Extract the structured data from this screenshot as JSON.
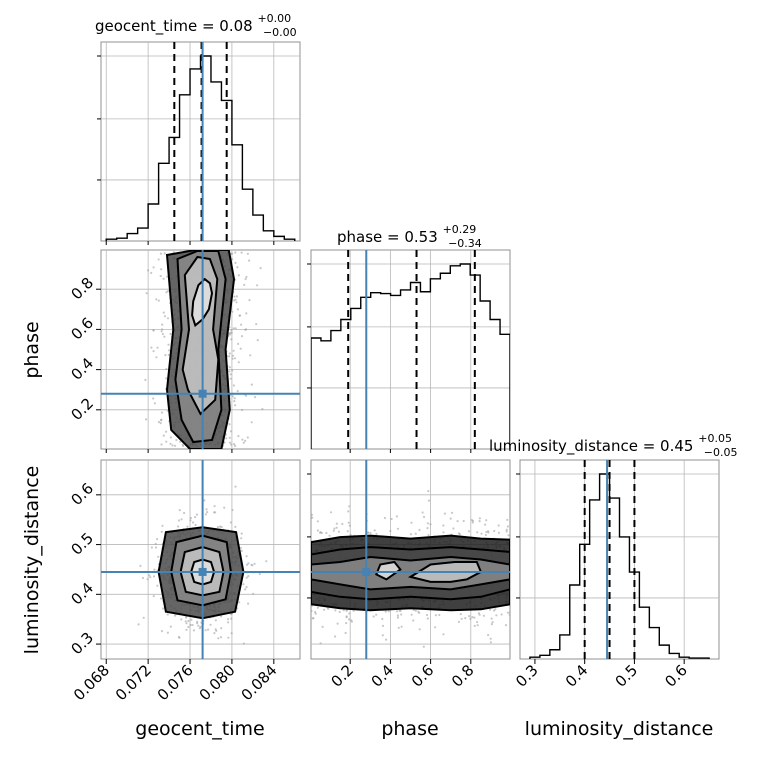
{
  "chart_data": {
    "type": "corner",
    "parameters": [
      "geocent_time",
      "phase",
      "luminosity_distance"
    ],
    "truth_values": {
      "geocent_time": 0.0772,
      "phase": 0.28,
      "luminosity_distance": 0.445
    },
    "ranges": {
      "geocent_time": [
        0.0675,
        0.0865
      ],
      "phase": [
        0.005,
        0.995
      ],
      "luminosity_distance": [
        0.27,
        0.67
      ]
    },
    "titles": [
      {
        "param": "geocent_time",
        "label": "geocent_time = 0.08",
        "sup": "+0.00",
        "sub": "−0.00"
      },
      {
        "param": "phase",
        "label": "phase = 0.53",
        "sup": "+0.29",
        "sub": "−0.34"
      },
      {
        "param": "luminosity_distance",
        "label": "luminosity_distance = 0.45",
        "sup": "+0.05",
        "sub": "−0.05"
      }
    ],
    "ticks": {
      "geocent_time": [
        "0.068",
        "0.072",
        "0.076",
        "0.080",
        "0.084"
      ],
      "phase": [
        "0.2",
        "0.4",
        "0.6",
        "0.8"
      ],
      "luminosity_distance": [
        "0.3",
        "0.4",
        "0.5",
        "0.6"
      ]
    },
    "quantiles": {
      "geocent_time": [
        0.0745,
        0.0771,
        0.0795
      ],
      "phase": [
        0.19,
        0.53,
        0.82
      ],
      "luminosity_distance": [
        0.4,
        0.45,
        0.5
      ]
    },
    "histograms": {
      "geocent_time": {
        "edges": [
          0.068,
          0.069,
          0.07,
          0.071,
          0.072,
          0.073,
          0.074,
          0.075,
          0.076,
          0.077,
          0.078,
          0.079,
          0.08,
          0.081,
          0.082,
          0.083,
          0.084,
          0.085,
          0.086
        ],
        "counts": [
          0.01,
          0.015,
          0.04,
          0.07,
          0.2,
          0.42,
          0.56,
          0.79,
          0.93,
          1.0,
          0.86,
          0.76,
          0.52,
          0.28,
          0.14,
          0.055,
          0.025,
          0.01
        ]
      },
      "phase": {
        "edges": [
          0.005,
          0.0545,
          0.104,
          0.1535,
          0.203,
          0.2525,
          0.302,
          0.3515,
          0.401,
          0.4505,
          0.5,
          0.5495,
          0.599,
          0.6485,
          0.698,
          0.7475,
          0.797,
          0.8465,
          0.896,
          0.9455,
          0.995
        ],
        "counts": [
          0.6,
          0.585,
          0.64,
          0.7,
          0.76,
          0.82,
          0.845,
          0.84,
          0.83,
          0.86,
          0.9,
          0.85,
          0.92,
          0.95,
          0.99,
          1.0,
          0.94,
          0.8,
          0.7,
          0.62
        ]
      },
      "luminosity_distance": {
        "edges": [
          0.29,
          0.31,
          0.33,
          0.35,
          0.37,
          0.39,
          0.41,
          0.43,
          0.45,
          0.47,
          0.49,
          0.51,
          0.53,
          0.55,
          0.57,
          0.59,
          0.61,
          0.63,
          0.65
        ],
        "counts": [
          0.01,
          0.02,
          0.05,
          0.13,
          0.4,
          0.62,
          0.86,
          1.0,
          0.87,
          0.66,
          0.47,
          0.28,
          0.17,
          0.075,
          0.03,
          0.01,
          0.005,
          0.005
        ]
      }
    },
    "contours": {
      "phase_vs_geocent_time": [
        {
          "x": [
            0.0765,
            0.0772,
            0.0778,
            0.0781,
            0.0779,
            0.0774,
            0.0768,
            0.0763,
            0.0762,
            0.0765
          ],
          "y": [
            0.62,
            0.65,
            0.7,
            0.78,
            0.83,
            0.85,
            0.82,
            0.74,
            0.67,
            0.62
          ]
        },
        {
          "x": [
            0.0758,
            0.077,
            0.0784,
            0.0787,
            0.0782,
            0.0786,
            0.0779,
            0.0767,
            0.0755,
            0.0759,
            0.0753,
            0.0758
          ],
          "y": [
            0.3,
            0.18,
            0.25,
            0.45,
            0.6,
            0.85,
            0.95,
            0.96,
            0.87,
            0.6,
            0.4,
            0.3
          ]
        },
        {
          "x": [
            0.0752,
            0.0763,
            0.0781,
            0.079,
            0.0787,
            0.0794,
            0.0787,
            0.0767,
            0.0748,
            0.0752,
            0.0746,
            0.0752
          ],
          "y": [
            0.15,
            0.04,
            0.05,
            0.2,
            0.5,
            0.85,
            0.99,
            0.99,
            0.95,
            0.6,
            0.35,
            0.15
          ]
        },
        {
          "x": [
            0.0742,
            0.076,
            0.079,
            0.0798,
            0.0794,
            0.0802,
            0.0797,
            0.0765,
            0.0738,
            0.0744,
            0.0738,
            0.0742
          ],
          "y": [
            0.1,
            0.005,
            0.005,
            0.2,
            0.5,
            0.85,
            0.995,
            0.995,
            0.97,
            0.6,
            0.3,
            0.1
          ]
        }
      ],
      "luminosity_distance_vs_geocent_time": [
        {
          "x": [
            0.0764,
            0.0772,
            0.078,
            0.0783,
            0.078,
            0.0772,
            0.0764,
            0.0761,
            0.0764
          ],
          "y": [
            0.425,
            0.42,
            0.425,
            0.445,
            0.465,
            0.47,
            0.465,
            0.445,
            0.425
          ]
        },
        {
          "x": [
            0.0756,
            0.0772,
            0.0788,
            0.0792,
            0.0788,
            0.0772,
            0.0755,
            0.0751,
            0.0756
          ],
          "y": [
            0.405,
            0.398,
            0.405,
            0.445,
            0.485,
            0.495,
            0.485,
            0.445,
            0.405
          ]
        },
        {
          "x": [
            0.0748,
            0.0772,
            0.0794,
            0.0799,
            0.0795,
            0.0772,
            0.0747,
            0.0742,
            0.0748
          ],
          "y": [
            0.388,
            0.378,
            0.39,
            0.445,
            0.505,
            0.518,
            0.505,
            0.445,
            0.388
          ]
        },
        {
          "x": [
            0.0737,
            0.0772,
            0.0803,
            0.0811,
            0.0804,
            0.0772,
            0.0737,
            0.073,
            0.0737
          ],
          "y": [
            0.365,
            0.352,
            0.365,
            0.445,
            0.525,
            0.535,
            0.525,
            0.445,
            0.365
          ]
        }
      ],
      "luminosity_distance_vs_phase": [
        {
          "x": [
            0.33,
            0.38,
            0.45,
            0.42,
            0.35,
            0.33
          ],
          "y": [
            0.44,
            0.43,
            0.45,
            0.465,
            0.46,
            0.44
          ]
        },
        {
          "x": [
            0.5,
            0.6,
            0.7,
            0.78,
            0.85,
            0.83,
            0.72,
            0.6,
            0.5
          ],
          "y": [
            0.435,
            0.425,
            0.425,
            0.43,
            0.445,
            0.465,
            0.465,
            0.46,
            0.435
          ]
        },
        {
          "x": [
            0.005,
            0.15,
            0.3,
            0.5,
            0.7,
            0.85,
            0.995,
            0.995,
            0.85,
            0.7,
            0.5,
            0.3,
            0.15,
            0.005
          ],
          "y": [
            0.43,
            0.42,
            0.41,
            0.415,
            0.41,
            0.42,
            0.43,
            0.46,
            0.47,
            0.475,
            0.468,
            0.475,
            0.465,
            0.46
          ]
        },
        {
          "x": [
            0.005,
            0.15,
            0.3,
            0.5,
            0.7,
            0.85,
            0.995,
            0.995,
            0.85,
            0.7,
            0.5,
            0.3,
            0.15,
            0.005
          ],
          "y": [
            0.405,
            0.395,
            0.39,
            0.395,
            0.39,
            0.395,
            0.41,
            0.485,
            0.49,
            0.495,
            0.49,
            0.495,
            0.49,
            0.48
          ]
        },
        {
          "x": [
            0.005,
            0.15,
            0.3,
            0.5,
            0.7,
            0.85,
            0.995,
            0.995,
            0.85,
            0.7,
            0.5,
            0.3,
            0.15,
            0.005
          ],
          "y": [
            0.38,
            0.372,
            0.368,
            0.372,
            0.368,
            0.37,
            0.38,
            0.51,
            0.512,
            0.518,
            0.512,
            0.518,
            0.515,
            0.505
          ]
        }
      ]
    },
    "colors": {
      "truth": "#4682b4",
      "lines": "#000000",
      "grid": "#b8b8b8"
    },
    "grid": true
  }
}
